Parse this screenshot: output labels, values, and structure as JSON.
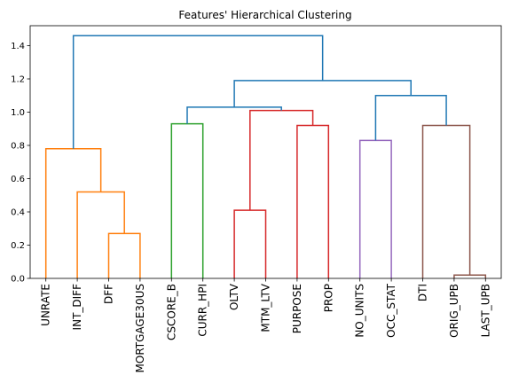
{
  "chart_data": {
    "type": "dendrogram",
    "title": "Features' Hierarchical Clustering",
    "xlabel": "",
    "ylabel": "",
    "ylim": [
      0,
      1.52
    ],
    "yticks": [
      0.0,
      0.2,
      0.4,
      0.6,
      0.8,
      1.0,
      1.2,
      1.4
    ],
    "ytick_labels": [
      "0.0",
      "0.2",
      "0.4",
      "0.6",
      "0.8",
      "1.0",
      "1.2",
      "1.4"
    ],
    "grid": false,
    "leaves": [
      "UNRATE",
      "INT_DIFF",
      "DFF",
      "MORTGAGE30US",
      "CSCORE_B",
      "CURR_HPI",
      "OLTV",
      "MTM_LTV",
      "PURPOSE",
      "PROP",
      "NO_UNITS",
      "OCC_STAT",
      "DTI",
      "ORIG_UPB",
      "LAST_UPB"
    ],
    "colors": {
      "orange": "#ff7f0e",
      "green": "#2ca02c",
      "red": "#d62728",
      "purple": "#9467bd",
      "brown": "#8c564b",
      "blue": "#1f77b4"
    },
    "links": [
      {
        "left": [
          2.5,
          0
        ],
        "right": [
          3.5,
          0
        ],
        "height": 0.27,
        "color": "orange"
      },
      {
        "left": [
          1.5,
          0
        ],
        "right": [
          3.0,
          0.27
        ],
        "height": 0.52,
        "color": "orange"
      },
      {
        "left": [
          0.5,
          0
        ],
        "right": [
          2.25,
          0.52
        ],
        "height": 0.78,
        "color": "orange"
      },
      {
        "left": [
          4.5,
          0
        ],
        "right": [
          5.5,
          0
        ],
        "height": 0.93,
        "color": "green"
      },
      {
        "left": [
          6.5,
          0
        ],
        "right": [
          7.5,
          0
        ],
        "height": 0.41,
        "color": "red"
      },
      {
        "left": [
          8.5,
          0
        ],
        "right": [
          9.5,
          0
        ],
        "height": 0.92,
        "color": "red"
      },
      {
        "left": [
          7.0,
          0.41
        ],
        "right": [
          9.0,
          0.92
        ],
        "height": 1.01,
        "color": "red"
      },
      {
        "left": [
          5.0,
          0.93
        ],
        "right": [
          8.0,
          1.01
        ],
        "height": 1.03,
        "color": "blue"
      },
      {
        "left": [
          10.5,
          0
        ],
        "right": [
          11.5,
          0
        ],
        "height": 0.83,
        "color": "purple"
      },
      {
        "left": [
          13.5,
          0
        ],
        "right": [
          14.5,
          0
        ],
        "height": 0.02,
        "color": "brown"
      },
      {
        "left": [
          12.5,
          0
        ],
        "right": [
          14.0,
          0.02
        ],
        "height": 0.92,
        "color": "brown"
      },
      {
        "left": [
          11.0,
          0.83
        ],
        "right": [
          13.25,
          0.92
        ],
        "height": 1.1,
        "color": "blue"
      },
      {
        "left": [
          6.5,
          1.03
        ],
        "right": [
          12.125,
          1.1
        ],
        "height": 1.19,
        "color": "blue"
      },
      {
        "left": [
          1.375,
          0.78
        ],
        "right": [
          9.3125,
          1.19
        ],
        "height": 1.46,
        "color": "blue"
      }
    ]
  }
}
